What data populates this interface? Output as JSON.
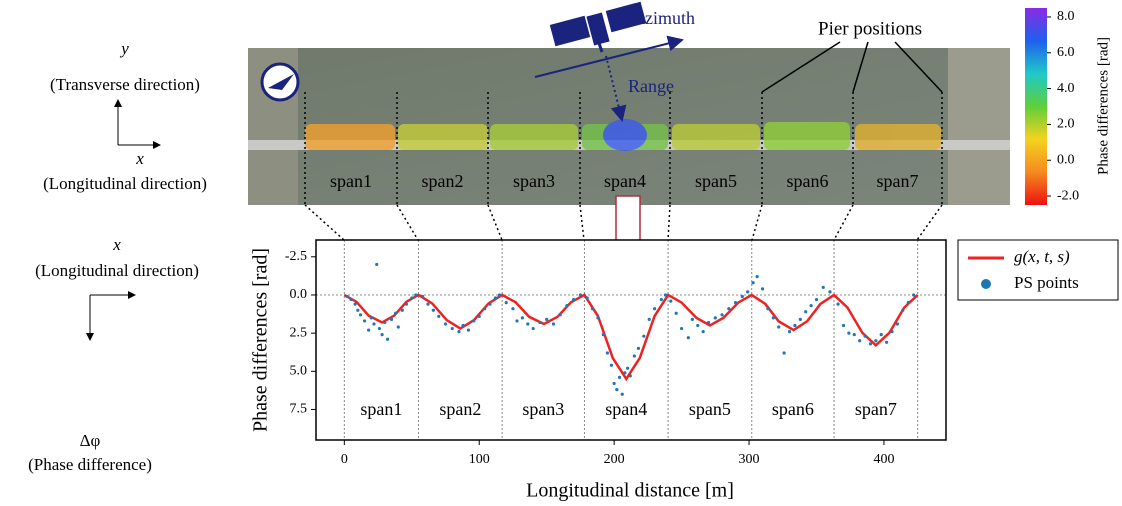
{
  "chart_data": [
    {
      "type": "scatter",
      "ylabel": "Phase differences [rad]",
      "xlabel": "Longitudinal distance [m]",
      "xlim": [
        -21,
        446
      ],
      "xticks": [
        0,
        100,
        200,
        300,
        400
      ],
      "ylim": [
        9.5,
        -3.6
      ],
      "yticks": [
        -2.5,
        {
          "value": 0,
          "label": "0.0"
        },
        2.5,
        {
          "value": 5,
          "label": "5.0"
        },
        7.5
      ],
      "pier_positions": [
        0,
        55,
        117,
        178,
        240,
        302,
        363,
        425
      ],
      "span_labels": [
        "span1",
        "span2",
        "span3",
        "span4",
        "span5",
        "span6",
        "span7"
      ],
      "legend": "outside right",
      "series": [
        {
          "name": "g(x, t, s)",
          "type": "line",
          "color": "#ee2222",
          "x": [
            0,
            9,
            18,
            28,
            37,
            46,
            55,
            65,
            76,
            86,
            96,
            107,
            117,
            127,
            137,
            148,
            158,
            168,
            178,
            188,
            199,
            209,
            219,
            230,
            240,
            250,
            261,
            271,
            281,
            292,
            302,
            312,
            322,
            333,
            343,
            353,
            363,
            373,
            384,
            394,
            404,
            415,
            425
          ],
          "values": [
            0,
            0.45,
            1.35,
            1.8,
            1.35,
            0.45,
            0,
            0.55,
            1.65,
            2.2,
            1.65,
            0.55,
            0,
            0.48,
            1.43,
            1.9,
            1.43,
            0.48,
            0,
            1.38,
            4.13,
            5.5,
            4.13,
            1.38,
            0,
            0.5,
            1.5,
            2.0,
            1.5,
            0.5,
            0,
            0.58,
            1.73,
            2.3,
            1.73,
            0.58,
            0,
            0.83,
            2.48,
            3.3,
            2.48,
            0.83,
            0
          ]
        },
        {
          "name": "PS points",
          "type": "scatter",
          "color": "#1f77b4",
          "x": [
            2,
            5,
            8,
            10,
            12,
            15,
            18,
            20,
            22,
            24,
            26,
            28,
            30,
            32,
            35,
            38,
            40,
            43,
            46,
            50,
            53,
            58,
            62,
            66,
            70,
            75,
            80,
            85,
            88,
            92,
            96,
            100,
            104,
            108,
            112,
            115,
            120,
            125,
            128,
            132,
            136,
            140,
            145,
            150,
            155,
            160,
            165,
            170,
            175,
            180,
            184,
            188,
            192,
            195,
            198,
            200,
            202,
            204,
            206,
            208,
            210,
            212,
            215,
            218,
            222,
            226,
            230,
            235,
            238,
            242,
            246,
            250,
            255,
            258,
            262,
            266,
            270,
            275,
            280,
            285,
            290,
            295,
            299,
            303,
            306,
            310,
            314,
            318,
            322,
            326,
            330,
            334,
            338,
            342,
            346,
            350,
            355,
            360,
            366,
            370,
            374,
            378,
            382,
            386,
            390,
            394,
            398,
            402,
            406,
            410,
            414,
            418,
            422
          ],
          "values": [
            0.1,
            0.3,
            0.6,
            1.0,
            1.3,
            1.7,
            2.3,
            1.5,
            1.9,
            -2.0,
            2.2,
            2.6,
            1.8,
            2.9,
            1.6,
            1.2,
            2.1,
            1.0,
            0.6,
            0.2,
            0.0,
            0.1,
            0.6,
            1.0,
            1.4,
            1.9,
            2.2,
            2.4,
            2.0,
            2.3,
            1.7,
            1.4,
            0.9,
            0.6,
            0.2,
            0.0,
            0.5,
            0.9,
            1.7,
            1.5,
            1.9,
            2.2,
            1.8,
            1.6,
            1.9,
            1.3,
            0.7,
            0.3,
            0.0,
            0.2,
            0.9,
            1.5,
            2.6,
            3.8,
            4.6,
            5.8,
            6.2,
            5.4,
            6.5,
            5.1,
            4.8,
            5.3,
            4.0,
            3.5,
            2.7,
            1.6,
            0.9,
            0.3,
            0.0,
            0.4,
            1.2,
            2.2,
            2.8,
            1.6,
            2.0,
            2.4,
            1.8,
            1.5,
            1.3,
            0.9,
            0.5,
            0.1,
            -0.2,
            -0.8,
            -1.2,
            -0.4,
            0.9,
            1.5,
            2.1,
            3.8,
            2.4,
            2.0,
            1.6,
            1.1,
            0.7,
            0.3,
            -0.5,
            -0.2,
            0.6,
            2.0,
            2.5,
            2.6,
            3.0,
            2.7,
            3.2,
            3.0,
            2.6,
            3.1,
            2.4,
            1.9,
            1.0,
            0.5,
            0.0
          ]
        }
      ]
    },
    {
      "type": "colorbar",
      "title": "Phase differences [rad]",
      "ylim": [
        -2.5,
        8.5
      ],
      "yticks": [
        {
          "value": -2,
          "label": "-2.0"
        },
        {
          "value": 0,
          "label": "0.0"
        },
        {
          "value": 2,
          "label": "2.0"
        },
        {
          "value": 4,
          "label": "4.0"
        },
        {
          "value": 6,
          "label": "6.0"
        },
        {
          "value": 8,
          "label": "8.0"
        }
      ],
      "colors": [
        "#ee1111",
        "#f58a1f",
        "#f5d21f",
        "#5fcf3a",
        "#1fc9c9",
        "#1f5fef",
        "#8a2be2"
      ]
    }
  ],
  "image_labels": {
    "azimuth": "Azimuth",
    "range": "Range",
    "pier_positions": "Pier positions",
    "spans": [
      "span1",
      "span2",
      "span3",
      "span4",
      "span5",
      "span6",
      "span7"
    ]
  },
  "axes_diagram": {
    "top_y": "y",
    "top_y_desc": "(Transverse direction)",
    "top_x": "x",
    "top_x_desc": "(Longitudinal direction)",
    "bottom_x": "x",
    "bottom_x_desc": "(Longitudinal direction)",
    "bottom_phi": "Δφ",
    "bottom_phi_desc": "(Phase difference)"
  }
}
